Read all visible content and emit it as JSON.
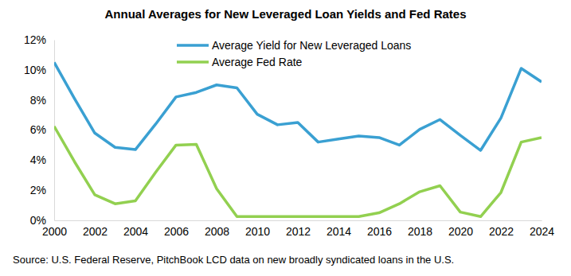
{
  "chart_data": {
    "type": "line",
    "title": "Annual Averages for New Leveraged Loan Yields and Fed Rates",
    "annotations": [
      "Source: U.S. Federal Reserve, PitchBook LCD data on new broadly syndicated loans in the U.S."
    ],
    "x": [
      2000,
      2001,
      2002,
      2003,
      2004,
      2005,
      2006,
      2007,
      2008,
      2009,
      2010,
      2011,
      2012,
      2013,
      2014,
      2015,
      2016,
      2017,
      2018,
      2019,
      2020,
      2021,
      2022,
      2023,
      2024
    ],
    "series": [
      {
        "name": "Average Yield for New Leveraged Loans",
        "color": "#3aa0d2",
        "values": [
          10.5,
          8.1,
          5.8,
          4.85,
          4.7,
          6.4,
          8.2,
          8.5,
          9.0,
          8.8,
          7.05,
          6.35,
          6.5,
          5.2,
          5.4,
          5.6,
          5.5,
          5.0,
          6.05,
          6.7,
          5.65,
          4.65,
          6.8,
          10.1,
          9.2
        ]
      },
      {
        "name": "Average Fed Rate",
        "color": "#92d050",
        "values": [
          6.25,
          3.9,
          1.7,
          1.1,
          1.3,
          3.2,
          5.0,
          5.05,
          2.1,
          0.25,
          0.25,
          0.25,
          0.25,
          0.25,
          0.25,
          0.25,
          0.5,
          1.1,
          1.9,
          2.3,
          0.55,
          0.25,
          1.85,
          5.2,
          5.5
        ]
      }
    ],
    "xlim": [
      2000,
      2024
    ],
    "xticks": [
      2000,
      2002,
      2004,
      2006,
      2008,
      2010,
      2012,
      2014,
      2016,
      2018,
      2020,
      2022,
      2024
    ],
    "ylim": [
      0,
      12
    ],
    "yticks": [
      {
        "value": 0,
        "label": "0%"
      },
      {
        "value": 2,
        "label": "2%"
      },
      {
        "value": 4,
        "label": "4%"
      },
      {
        "value": 6,
        "label": "6%"
      },
      {
        "value": 8,
        "label": "8%"
      },
      {
        "value": 10,
        "label": "10%"
      },
      {
        "value": 12,
        "label": "12%"
      }
    ],
    "grid": false,
    "legend": "top"
  }
}
